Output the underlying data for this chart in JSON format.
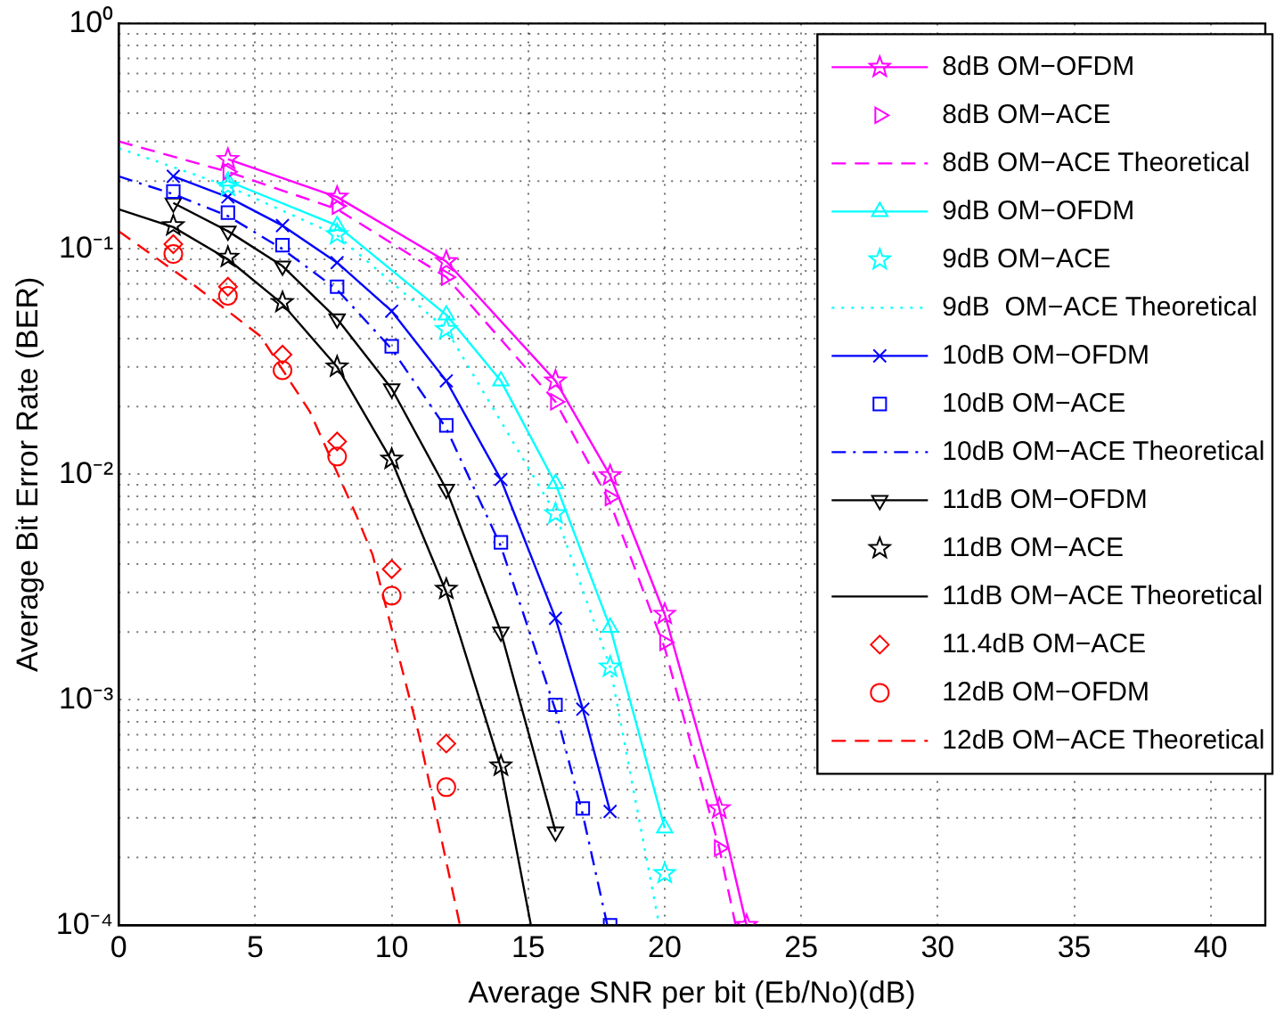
{
  "chart_data": {
    "type": "line",
    "xlabel": "Average SNR per bit (Eb/No)(dB)",
    "ylabel": "Average Bit Error Rate (BER)",
    "xlim": [
      0,
      42
    ],
    "xticks": [
      0,
      5,
      10,
      15,
      20,
      25,
      30,
      35,
      40
    ],
    "ylim": [
      0.0001,
      1
    ],
    "yticks": [
      {
        "value": 0.0001,
        "label": "10⁻⁴"
      },
      {
        "value": 0.001,
        "label": "10⁻³"
      },
      {
        "value": 0.01,
        "label": "10⁻²"
      },
      {
        "value": 0.1,
        "label": "10⁻¹"
      },
      {
        "value": 1,
        "label": "10⁰"
      }
    ],
    "log": "y",
    "grid": true,
    "legend": "top right",
    "series": [
      {
        "name": "8dB OM−OFDM",
        "color": "#ff00ff",
        "marker": "star",
        "line_style": "solid",
        "x": [
          4,
          8,
          12,
          16,
          18,
          20,
          22,
          23
        ],
        "values": [
          0.25,
          0.17,
          0.088,
          0.026,
          0.0099,
          0.0024,
          0.00033,
          0.0001
        ]
      },
      {
        "name": "8dB OM−ACE",
        "type": "scatter",
        "color": "#ff00ff",
        "marker": "triangle-right",
        "x": [
          4,
          8,
          12,
          16,
          18,
          20,
          22
        ],
        "values": [
          0.22,
          0.155,
          0.075,
          0.021,
          0.0079,
          0.0018,
          0.00022
        ]
      },
      {
        "name": "8dB OM−ACE Theoretical",
        "color": "#ff00ff",
        "marker": "none",
        "line_style": "dashed",
        "x": [
          0,
          4,
          8,
          12,
          16,
          18,
          20,
          22,
          22.6
        ],
        "values": [
          0.3,
          0.22,
          0.15,
          0.075,
          0.021,
          0.0075,
          0.0017,
          0.00022,
          0.0001
        ]
      },
      {
        "name": "9dB OM−OFDM",
        "color": "#00ffff",
        "marker": "triangle",
        "line_style": "solid",
        "x": [
          4,
          8,
          12,
          14,
          16,
          18,
          20
        ],
        "values": [
          0.2,
          0.127,
          0.051,
          0.026,
          0.0091,
          0.0021,
          0.00027
        ]
      },
      {
        "name": "9dB OM−ACE",
        "type": "scatter",
        "color": "#00ffff",
        "marker": "star",
        "x": [
          4,
          8,
          12,
          16,
          18,
          20
        ],
        "values": [
          0.19,
          0.116,
          0.044,
          0.0067,
          0.0014,
          0.00017
        ]
      },
      {
        "name": "9dB  OM−ACE Theoretical",
        "color": "#00ffff",
        "marker": "none",
        "line_style": "dotted",
        "x": [
          0,
          4,
          8,
          12,
          16,
          18,
          19.8
        ],
        "values": [
          0.28,
          0.19,
          0.115,
          0.044,
          0.0067,
          0.0014,
          0.0001
        ]
      },
      {
        "name": "10dB OM−OFDM",
        "color": "#0000ff",
        "marker": "cross",
        "line_style": "solid",
        "x": [
          2,
          4,
          6,
          8,
          10,
          12,
          14,
          16,
          17,
          18
        ],
        "values": [
          0.21,
          0.17,
          0.127,
          0.087,
          0.053,
          0.026,
          0.0095,
          0.0023,
          0.00091,
          0.00032
        ]
      },
      {
        "name": "10dB OM−ACE",
        "type": "scatter",
        "color": "#0000ff",
        "marker": "square",
        "x": [
          2,
          4,
          6,
          8,
          10,
          12,
          14,
          16,
          17,
          18
        ],
        "values": [
          0.18,
          0.145,
          0.104,
          0.068,
          0.037,
          0.0165,
          0.005,
          0.00095,
          0.00033,
          0.0001
        ]
      },
      {
        "name": "10dB OM−ACE Theoretical",
        "color": "#0000ff",
        "marker": "none",
        "line_style": "dashdot",
        "x": [
          0,
          2,
          4,
          6,
          8,
          10,
          12,
          14,
          16,
          17,
          17.9
        ],
        "values": [
          0.21,
          0.175,
          0.14,
          0.1,
          0.066,
          0.036,
          0.016,
          0.0048,
          0.0009,
          0.00031,
          0.0001
        ]
      },
      {
        "name": "11dB OM−OFDM",
        "color": "#000000",
        "marker": "triangle-down",
        "line_style": "solid",
        "x": [
          2,
          4,
          6,
          8,
          10,
          12,
          14,
          16
        ],
        "values": [
          0.16,
          0.12,
          0.084,
          0.049,
          0.024,
          0.0086,
          0.002,
          0.00026
        ]
      },
      {
        "name": "11dB OM−ACE",
        "type": "scatter",
        "color": "#000000",
        "marker": "star",
        "x": [
          2,
          4,
          6,
          8,
          10,
          12,
          14
        ],
        "values": [
          0.127,
          0.092,
          0.058,
          0.03,
          0.0117,
          0.0031,
          0.00051
        ]
      },
      {
        "name": "11dB OM−ACE Theoretical",
        "color": "#000000",
        "marker": "none",
        "line_style": "solid",
        "x": [
          0,
          2,
          4,
          6,
          8,
          10,
          12,
          14,
          15.1
        ],
        "values": [
          0.15,
          0.125,
          0.09,
          0.057,
          0.03,
          0.0115,
          0.003,
          0.0005,
          0.0001
        ]
      },
      {
        "name": "11.4dB OM−ACE",
        "type": "scatter",
        "color": "#ff0000",
        "marker": "diamond",
        "x": [
          2,
          4,
          6,
          8,
          10,
          12
        ],
        "values": [
          0.105,
          0.068,
          0.034,
          0.014,
          0.0038,
          0.00064
        ]
      },
      {
        "name": "12dB OM−OFDM",
        "type": "scatter",
        "color": "#ff0000",
        "marker": "circle",
        "x": [
          2,
          4,
          6,
          8,
          10,
          12
        ],
        "values": [
          0.095,
          0.062,
          0.029,
          0.012,
          0.0029,
          0.00041
        ]
      },
      {
        "name": "12dB OM−ACE Theoretical",
        "color": "#ff0000",
        "marker": "none",
        "line_style": "dashed",
        "x": [
          0,
          2.7,
          5.2,
          7,
          8.7,
          9.3,
          11,
          12.5
        ],
        "values": [
          0.12,
          0.07,
          0.041,
          0.019,
          0.0066,
          0.0044,
          0.0007,
          0.0001
        ]
      }
    ]
  }
}
